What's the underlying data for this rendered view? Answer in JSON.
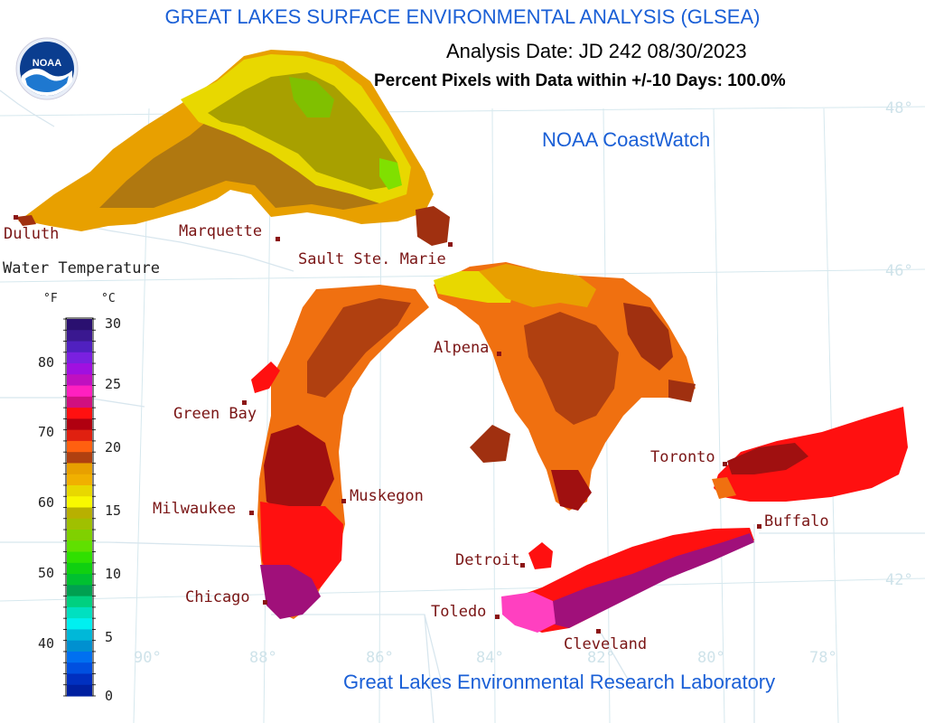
{
  "title": "GREAT LAKES SURFACE ENVIRONMENTAL ANALYSIS (GLSEA)",
  "analysis_date": "Analysis Date:  JD 242 08/30/2023",
  "percent_pixels": "Percent Pixels with Data within +/-10 Days: 100.0%",
  "coastwatch": "NOAA CoastWatch",
  "credit": "Great Lakes Environmental Research Laboratory",
  "logo_text": "NOAA",
  "legend": {
    "title": "Water Temperature",
    "unit_f": "°F",
    "unit_c": "°C",
    "ticks_f": [
      "80",
      "70",
      "60",
      "50",
      "40"
    ],
    "ticks_c": [
      "30",
      "25",
      "20",
      "15",
      "10",
      "5",
      "0"
    ]
  },
  "cities": {
    "duluth": "Duluth",
    "marquette": "Marquette",
    "sault": "Sault Ste. Marie",
    "green_bay": "Green Bay",
    "alpena": "Alpena",
    "milwaukee": "Milwaukee",
    "muskegon": "Muskegon",
    "chicago": "Chicago",
    "detroit": "Detroit",
    "toledo": "Toledo",
    "cleveland": "Cleveland",
    "toronto": "Toronto",
    "buffalo": "Buffalo"
  },
  "grid": {
    "lat": [
      "48°",
      "46°",
      "42°"
    ],
    "lon": [
      "90°",
      "88°",
      "86°",
      "84°",
      "82°",
      "80°",
      "78°"
    ]
  },
  "colors": {
    "title_blue": "#1a5fd6",
    "city_red": "#7a1515",
    "grid": "#d6e8ee"
  }
}
